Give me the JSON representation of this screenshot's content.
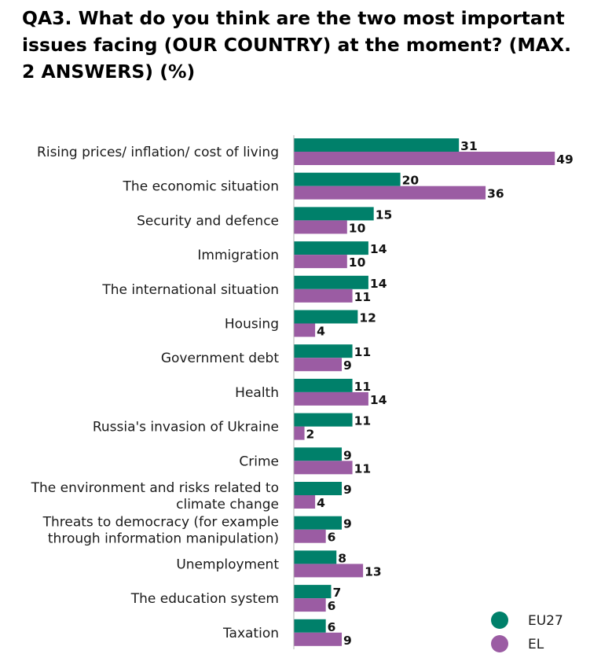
{
  "chart_data": {
    "type": "bar",
    "orientation": "horizontal",
    "title": "QA3. What do you think are the two most important issues facing (OUR COUNTRY) at the moment? (MAX. 2 ANSWERS) (%)",
    "categories": [
      [
        "Rising prices/ inflation/ cost of living"
      ],
      [
        "The economic situation"
      ],
      [
        "Security and defence"
      ],
      [
        "Immigration"
      ],
      [
        "The international situation"
      ],
      [
        "Housing"
      ],
      [
        "Government debt"
      ],
      [
        "Health"
      ],
      [
        "Russia's invasion of Ukraine"
      ],
      [
        "Crime"
      ],
      [
        "The environment and risks related to",
        "climate change"
      ],
      [
        "Threats to democracy (for example",
        "through information manipulation)"
      ],
      [
        "Unemployment"
      ],
      [
        "The education system"
      ],
      [
        "Taxation"
      ]
    ],
    "series": [
      {
        "name": "EU27",
        "color": "#00806a",
        "values": [
          31,
          20,
          15,
          14,
          14,
          12,
          11,
          11,
          11,
          9,
          9,
          9,
          8,
          7,
          6
        ]
      },
      {
        "name": "EL",
        "color": "#9b5ca3",
        "values": [
          49,
          36,
          10,
          10,
          11,
          4,
          9,
          14,
          2,
          11,
          4,
          6,
          13,
          6,
          9
        ]
      }
    ],
    "legend_position": "bottom-right",
    "grid": false
  }
}
